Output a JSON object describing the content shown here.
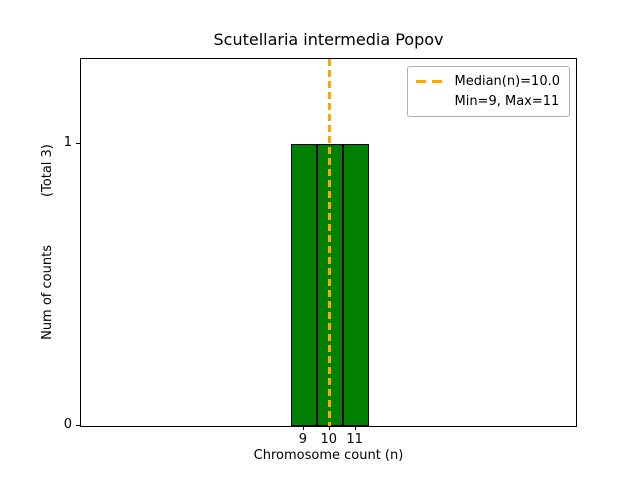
{
  "chart_data": {
    "type": "bar",
    "title": "Scutellaria intermedia Popov",
    "xlabel": "Chromosome count (n)",
    "ylabel": "Num of counts",
    "ylabel_note": "(Total 3)",
    "categories": [
      9,
      10,
      11
    ],
    "values": [
      1,
      1,
      1
    ],
    "total_counts": 3,
    "bar_width": 1,
    "bar_color": "#008000",
    "bar_edge_color": "#000000",
    "xlim": [
      0.4,
      19.5
    ],
    "ylim": [
      0,
      1.3
    ],
    "xticks": [
      9,
      10,
      11
    ],
    "yticks": [
      0,
      1
    ],
    "grid": false,
    "median_line": {
      "x": 10,
      "color": "#FFA500",
      "style": "dashed",
      "width": 2.5
    },
    "legend": {
      "position": "upper right",
      "entries": [
        {
          "label": "Median(n)=10.0",
          "handle": "dashed-orange-line"
        },
        {
          "label": "Min=9, Max=11",
          "handle": "none"
        }
      ]
    }
  }
}
